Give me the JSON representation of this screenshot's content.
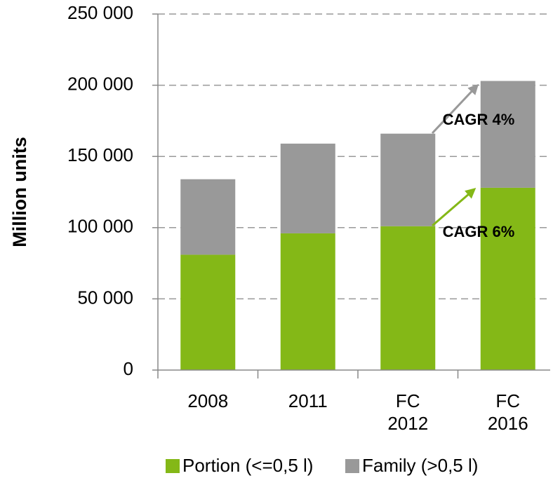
{
  "chart_data": {
    "type": "stacked_bar",
    "y_label": "Million units",
    "categories": [
      "2008",
      "2011",
      "FC 2012",
      "FC 2016"
    ],
    "series": [
      {
        "name": "Portion (<=0,5 l)",
        "color": "#84b817",
        "values": [
          81000,
          96000,
          101000,
          128000
        ]
      },
      {
        "name": "Family (>0,5 l)",
        "color": "#999999",
        "values": [
          53000,
          63000,
          65000,
          75000
        ]
      }
    ],
    "ylim": [
      0,
      250000
    ],
    "yticks": [
      0,
      {
        "value": 50000,
        "label": "50 000"
      },
      {
        "value": 100000,
        "label": "100 000"
      },
      {
        "value": 150000,
        "label": "150 000"
      },
      {
        "value": 200000,
        "label": "200 000"
      },
      {
        "value": 250000,
        "label": "250 000"
      }
    ],
    "grid": true,
    "legend": "bottom",
    "annotations": [
      "CAGR 4%",
      "CAGR 6%"
    ]
  }
}
